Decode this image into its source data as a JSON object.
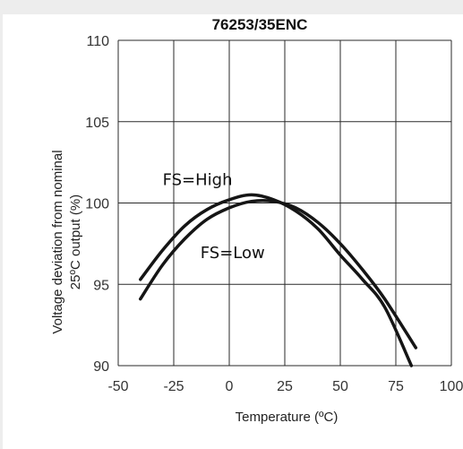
{
  "chart_data": {
    "type": "line",
    "title": "76253/35ENC",
    "xlabel": "Temperature (ºC)",
    "ylabel": [
      "Voltage deviation from nominal",
      "25ºC output (%)"
    ],
    "xlim": [
      -50,
      100
    ],
    "ylim": [
      90,
      110
    ],
    "xticks": [
      "-50",
      "-25",
      "0",
      "25",
      "50",
      "75",
      "100"
    ],
    "yticks": [
      "90",
      "95",
      "100",
      "105",
      "110"
    ],
    "grid": true,
    "series": [
      {
        "name": "FS=High",
        "x": [
          -40,
          -30,
          -20,
          -10,
          0,
          10,
          20,
          30,
          40,
          50,
          60,
          70,
          82
        ],
        "y": [
          95.3,
          97.1,
          98.6,
          99.6,
          100.2,
          100.5,
          100.2,
          99.5,
          98.4,
          96.8,
          95.3,
          93.6,
          90.0
        ]
      },
      {
        "name": "FS=Low",
        "x": [
          -40,
          -30,
          -20,
          -10,
          0,
          10,
          20,
          30,
          40,
          50,
          60,
          70,
          84
        ],
        "y": [
          94.1,
          96.2,
          97.8,
          99.0,
          99.7,
          100.1,
          100.1,
          99.7,
          98.8,
          97.5,
          95.9,
          94.1,
          91.1
        ]
      }
    ],
    "annotations": [
      {
        "text": "FS=High",
        "x": -30,
        "y": 101.1
      },
      {
        "text": "FS=Low",
        "x": -13,
        "y": 96.6
      }
    ]
  }
}
